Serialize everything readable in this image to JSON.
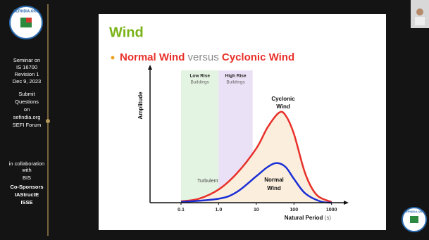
{
  "sidebar": {
    "logo": "SEFINDIA.ORG",
    "seminar": [
      "Seminar on",
      "IS 16700",
      "Revision 1",
      "Dec 9, 2023"
    ],
    "questions": [
      "Submit",
      "Questions",
      "on",
      "sefindia.org",
      "SEFI Forum"
    ],
    "collaboration": [
      "in collaboration",
      "with"
    ],
    "partner": "BIS",
    "sponsors": [
      "Co-Sponsors",
      "IAStructE",
      "ISSE"
    ]
  },
  "slide": {
    "title": "Wind",
    "bullet": [
      "Normal Wind",
      "versus",
      "Cyclonic Wind"
    ]
  },
  "chart_data": {
    "type": "line",
    "x_label": "Natural Period",
    "x_unit": "(s)",
    "y_label": "Amplitude",
    "xscale": "log",
    "xlim": [
      0.015,
      2300
    ],
    "ylim": [
      0,
      100
    ],
    "xticks": [
      0.1,
      {
        "value": 1,
        "label": "1.0"
      },
      10,
      100,
      1000
    ],
    "bands": [
      {
        "lines": [
          "Low Rise",
          "Buildings"
        ],
        "range": [
          0.1,
          1
        ],
        "color": "#e4f4e2"
      },
      {
        "lines": [
          "High Rise",
          "Buildings"
        ],
        "range": [
          1,
          8
        ],
        "color": "#ebe1f6"
      }
    ],
    "annotations": {
      "turbulent": "Turbulent",
      "cyclonic": [
        "Cyclonic",
        "Wind"
      ],
      "normal": [
        "Normal",
        "Wind"
      ]
    },
    "series": [
      {
        "name": "Cyclonic Wind",
        "color": "#e8302a",
        "area_color": "#fbeedc",
        "x": [
          0.1,
          0.3,
          1,
          3,
          10,
          20,
          40,
          60,
          100,
          200,
          400,
          1000
        ],
        "values": [
          1,
          3,
          10,
          22,
          41,
          57,
          68,
          66,
          52,
          22,
          6,
          0.5
        ]
      },
      {
        "name": "Normal Wind",
        "color": "#1a2fd6",
        "x": [
          0.1,
          1,
          3,
          10,
          20,
          35,
          60,
          100,
          200,
          500,
          1000
        ],
        "values": [
          0.5,
          3,
          8,
          20,
          27,
          30,
          27,
          18,
          7,
          1,
          0
        ]
      }
    ]
  }
}
